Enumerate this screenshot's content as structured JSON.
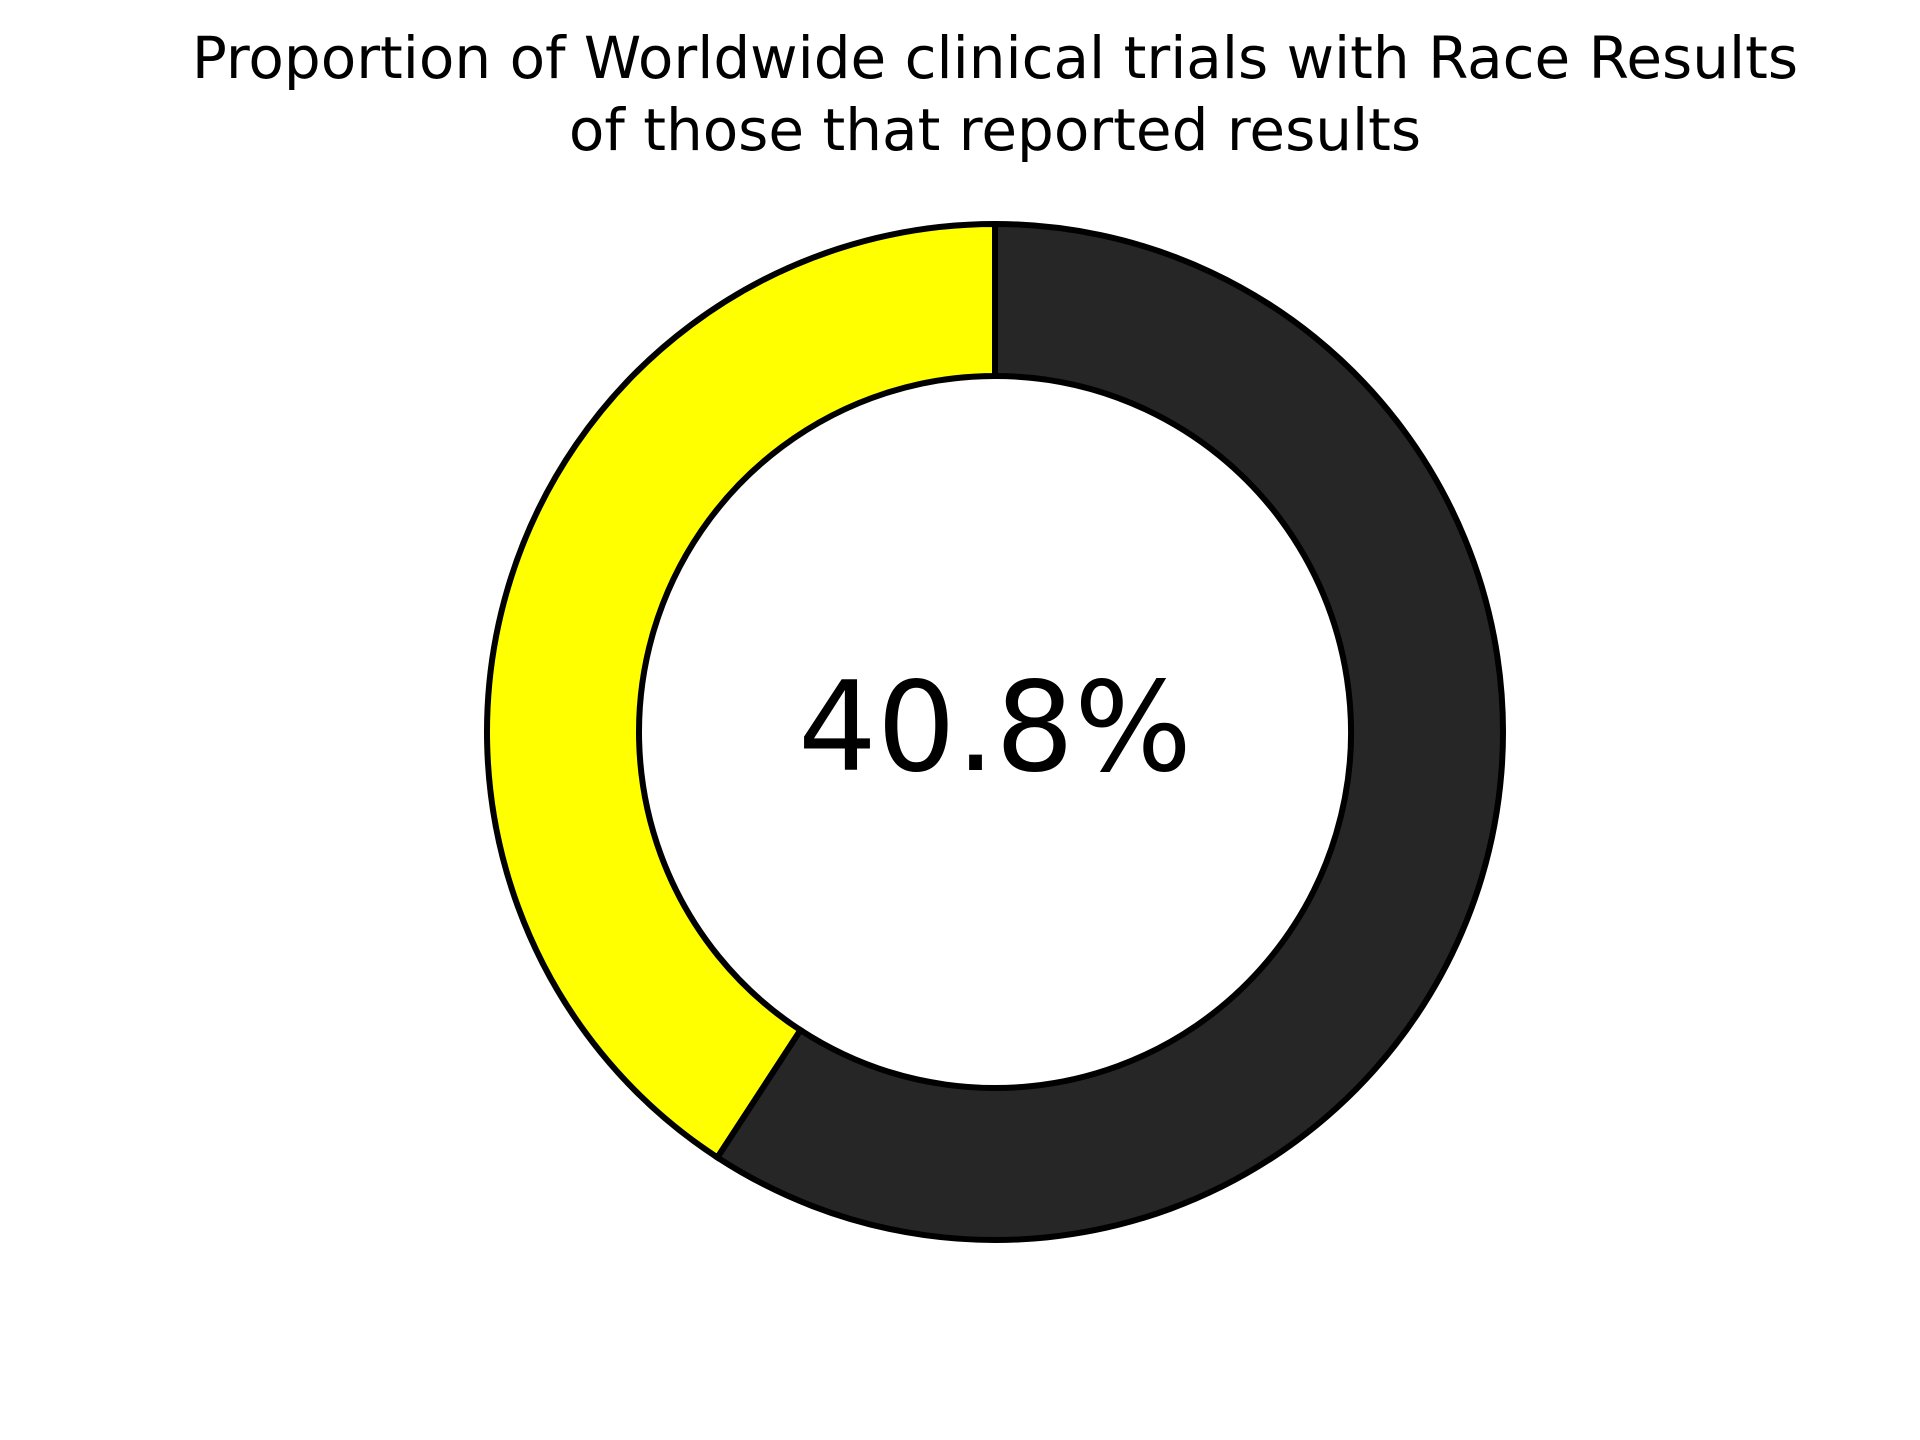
{
  "chart_data": {
    "type": "pie",
    "variant": "donut",
    "title_line1": "Proportion of Worldwide clinical trials with Race Results",
    "title_line2": "of those that reported results",
    "center_label": "40.8%",
    "slices": [
      {
        "value": 40.8,
        "color": "#ffff00"
      },
      {
        "value": 59.2,
        "color": "#262626"
      }
    ],
    "start": "top",
    "direction": "counterclockwise",
    "edge_color": "#000000",
    "legend": "none"
  }
}
